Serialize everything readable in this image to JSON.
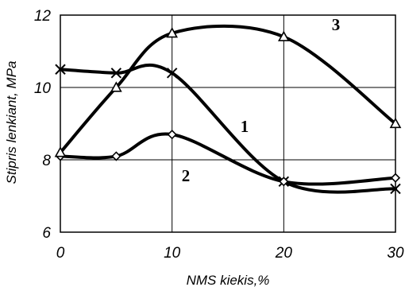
{
  "chart_data": {
    "type": "line",
    "xlabel": "NMS kiekis,%",
    "ylabel": "Stipris lenkiant, MPa",
    "x_ticks": [
      0,
      10,
      20,
      30
    ],
    "x_tick_labels": [
      "0",
      "10",
      "20",
      "30"
    ],
    "y_ticks": [
      6,
      8,
      10,
      12
    ],
    "y_tick_labels": [
      "6",
      "8",
      "10",
      "12"
    ],
    "xlim": [
      0,
      30
    ],
    "ylim": [
      6,
      12
    ],
    "grid": true,
    "series": [
      {
        "name": "1",
        "marker": "cross",
        "points": [
          {
            "x": 0,
            "y": 10.5
          },
          {
            "x": 5,
            "y": 10.4
          },
          {
            "x": 10,
            "y": 10.4
          },
          {
            "x": 20,
            "y": 7.4
          },
          {
            "x": 30,
            "y": 7.2
          }
        ]
      },
      {
        "name": "2",
        "marker": "diamond",
        "points": [
          {
            "x": 0,
            "y": 8.1
          },
          {
            "x": 5,
            "y": 8.1
          },
          {
            "x": 10,
            "y": 8.7
          },
          {
            "x": 20,
            "y": 7.4
          },
          {
            "x": 30,
            "y": 7.5
          }
        ]
      },
      {
        "name": "3",
        "marker": "triangle",
        "points": [
          {
            "x": 0,
            "y": 8.2
          },
          {
            "x": 5,
            "y": 10.0
          },
          {
            "x": 10,
            "y": 11.5
          },
          {
            "x": 20,
            "y": 11.4
          },
          {
            "x": 30,
            "y": 9.0
          }
        ]
      }
    ]
  }
}
